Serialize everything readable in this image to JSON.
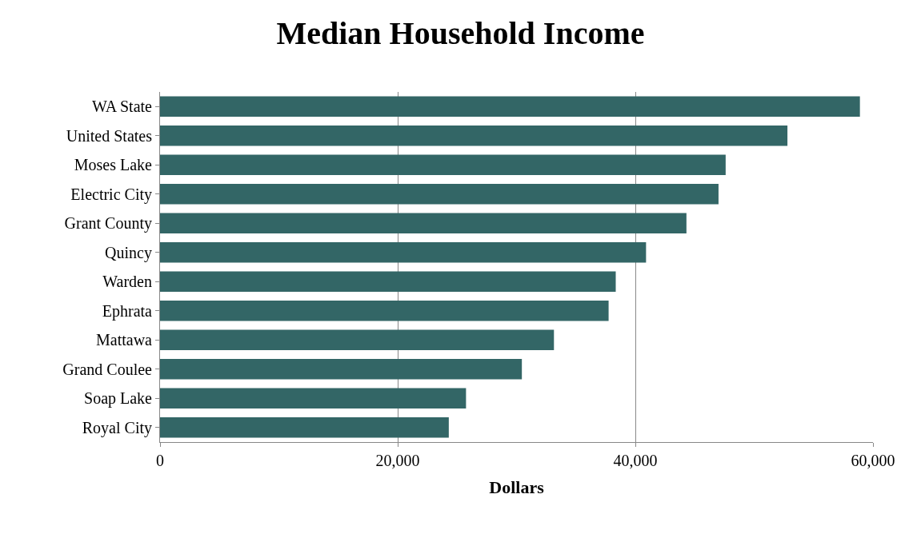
{
  "chart_data": {
    "type": "bar",
    "orientation": "horizontal",
    "title": "Median Household Income",
    "xlabel": "Dollars",
    "categories": [
      "WA State",
      "United States",
      "Moses Lake",
      "Electric City",
      "Grant County",
      "Quincy",
      "Warden",
      "Ephrata",
      "Mattawa",
      "Grand Coulee",
      "Soap Lake",
      "Royal City"
    ],
    "values": [
      58900,
      52800,
      47600,
      47000,
      44300,
      40900,
      38350,
      37750,
      33150,
      30450,
      25750,
      24300
    ],
    "color": "#336666",
    "xlim": [
      0,
      60000
    ],
    "xticks": [
      0,
      {
        "value": 20000,
        "label": "20,000"
      },
      {
        "value": 40000,
        "label": "40,000"
      },
      {
        "value": 60000,
        "label": "60,000"
      }
    ],
    "grid": "x",
    "legend": false
  }
}
